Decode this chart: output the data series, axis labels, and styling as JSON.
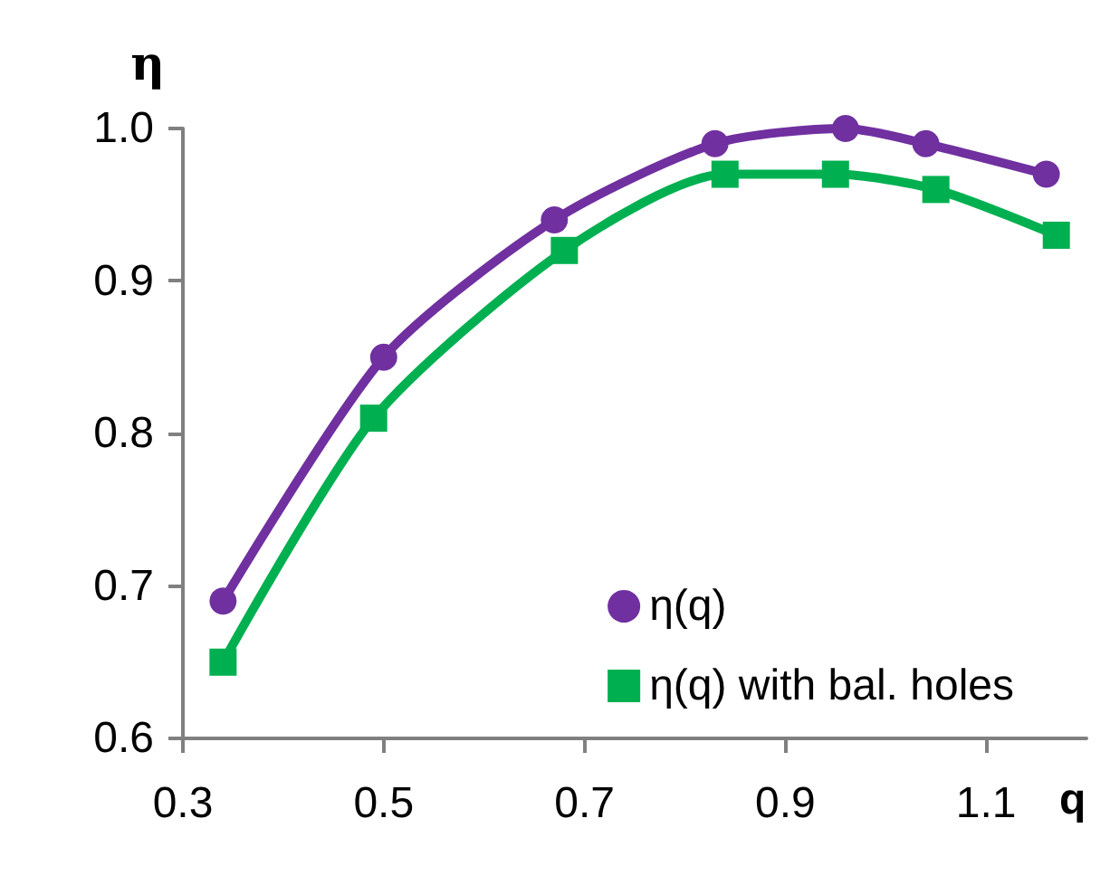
{
  "chart_data": {
    "type": "line",
    "xlabel": "q",
    "ylabel": "η",
    "xlim": [
      0.3,
      1.2
    ],
    "xticks": [
      0.3,
      0.5,
      0.7,
      0.9,
      1.1
    ],
    "ylim": [
      0.6,
      1.0
    ],
    "yticks": [
      0.6,
      0.7,
      0.8,
      0.9,
      {
        "value": 1.0,
        "label": "1.0"
      }
    ],
    "grid": false,
    "legend": "bottom right",
    "line_style": "solid",
    "series": [
      {
        "name": "η(q)",
        "color": "#7030a0",
        "marker": "circle",
        "x": [
          0.34,
          0.5,
          0.67,
          0.83,
          0.96,
          1.04,
          1.16
        ],
        "values": [
          0.69,
          0.85,
          0.94,
          0.99,
          1.0,
          0.99,
          0.97
        ]
      },
      {
        "name": "η(q) with bal. holes",
        "color": "#00b050",
        "marker": "square",
        "x": [
          0.34,
          0.49,
          0.68,
          0.84,
          0.95,
          1.05,
          1.17
        ],
        "values": [
          0.65,
          0.81,
          0.92,
          0.97,
          0.97,
          0.96,
          0.93
        ]
      }
    ]
  }
}
